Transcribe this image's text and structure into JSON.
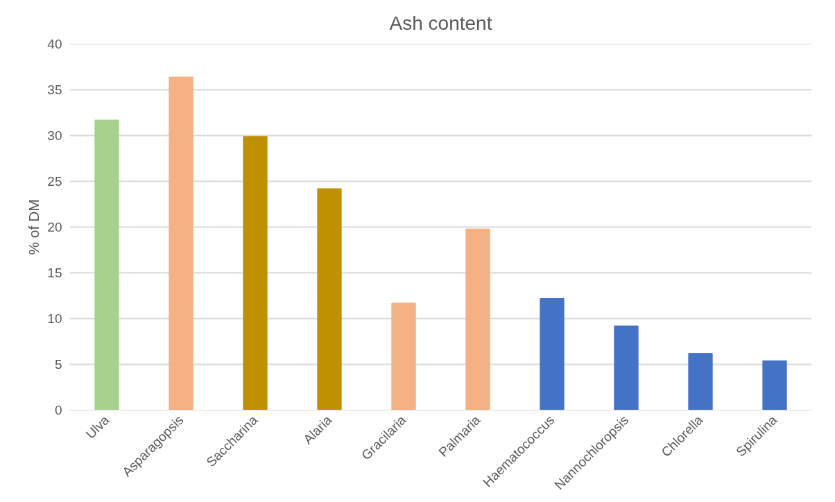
{
  "chart_data": {
    "type": "bar",
    "title": "Ash content",
    "ylabel": "% of DM",
    "categories": [
      "Ulva",
      "Asparagopsis",
      "Saccharina",
      "Alaria",
      "Gracilaria",
      "Palmaria",
      "Haematococcus",
      "Nannochloropsis",
      "Chlorella",
      "Spirulina"
    ],
    "values": [
      31.7,
      36.4,
      29.9,
      24.2,
      11.7,
      19.8,
      12.2,
      9.2,
      6.2,
      5.4
    ],
    "colors": [
      "#a9d18e",
      "#f4b183",
      "#bf9000",
      "#bf9000",
      "#f4b183",
      "#f4b183",
      "#4472c4",
      "#4472c4",
      "#4472c4",
      "#4472c4"
    ],
    "ylim": [
      0,
      40
    ],
    "yticks": [
      0,
      5,
      10,
      15,
      20,
      25,
      30,
      35,
      40
    ],
    "grid": "y"
  }
}
